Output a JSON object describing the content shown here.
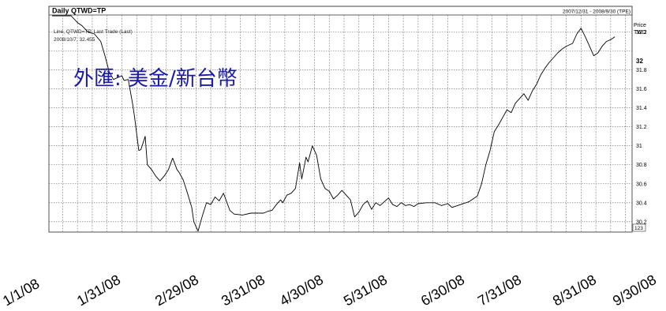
{
  "header": {
    "title": "Daily QTWD=TP",
    "date_range": "2007/12/31 - 2008/9/30 (TPE)",
    "price_label": "Price",
    "currency_label": "TWD"
  },
  "legend": {
    "line1": "Line, QTWD=TP, Last Trade (Last)",
    "line2": "2008/10/7, 32.455"
  },
  "overlay_title": "外匯: 美金/新台幣",
  "last_value_label": "32",
  "bottom_right_label": "123",
  "chart_data": {
    "type": "line",
    "title": "Daily QTWD=TP",
    "subtitle": "2007/12/31 - 2008/9/30 (TPE)",
    "ylabel": "Price TWD",
    "ylim": [
      30.09,
      32.38
    ],
    "yticks": [
      30.2,
      30.4,
      30.6,
      30.8,
      31,
      31.2,
      31.4,
      31.6,
      31.8,
      32,
      32.2
    ],
    "ytick_labels": [
      "30.2",
      "30.4",
      "30.6",
      "30.8",
      "31",
      "31.2",
      "31.4",
      "31.6",
      "31.8",
      "32",
      "32.2"
    ],
    "xlim": [
      "2008-01-01",
      "2008-09-30"
    ],
    "date_axis_labels": [
      {
        "date": "2008-01-01",
        "label": "1/1/08"
      },
      {
        "date": "2008-01-31",
        "label": "1/31/08"
      },
      {
        "date": "2008-02-29",
        "label": "2/29/08"
      },
      {
        "date": "2008-03-31",
        "label": "3/31/08"
      },
      {
        "date": "2008-04-30",
        "label": "4/30/08"
      },
      {
        "date": "2008-05-31",
        "label": "5/31/08"
      },
      {
        "date": "2008-06-30",
        "label": "6/30/08"
      },
      {
        "date": "2008-07-31",
        "label": "7/31/08"
      },
      {
        "date": "2008-08-31",
        "label": "8/31/08"
      },
      {
        "date": "2008-09-30",
        "label": "9/30/08"
      }
    ],
    "grid": true,
    "series": [
      {
        "name": "QTWD=TP",
        "color": "#000000",
        "points": [
          [
            "2008-01-01",
            32.45
          ],
          [
            "2008-01-03",
            32.46
          ],
          [
            "2008-01-05",
            32.42
          ],
          [
            "2008-01-08",
            32.4
          ],
          [
            "2008-01-10",
            32.38
          ],
          [
            "2008-01-13",
            32.3
          ],
          [
            "2008-01-15",
            32.27
          ],
          [
            "2008-01-18",
            32.2
          ],
          [
            "2008-01-21",
            32.18
          ],
          [
            "2008-01-24",
            32.1
          ],
          [
            "2008-01-26",
            31.95
          ],
          [
            "2008-01-28",
            31.78
          ],
          [
            "2008-01-30",
            31.7
          ],
          [
            "2008-02-01",
            31.72
          ],
          [
            "2008-02-03",
            31.74
          ],
          [
            "2008-02-04",
            31.69
          ],
          [
            "2008-02-06",
            31.7
          ],
          [
            "2008-02-08",
            31.45
          ],
          [
            "2008-02-09",
            31.3
          ],
          [
            "2008-02-11",
            30.95
          ],
          [
            "2008-02-12",
            30.96
          ],
          [
            "2008-02-14",
            31.1
          ],
          [
            "2008-02-15",
            30.8
          ],
          [
            "2008-02-17",
            30.75
          ],
          [
            "2008-02-19",
            30.68
          ],
          [
            "2008-02-21",
            30.63
          ],
          [
            "2008-02-23",
            30.68
          ],
          [
            "2008-02-25",
            30.75
          ],
          [
            "2008-02-27",
            30.87
          ],
          [
            "2008-02-29",
            30.75
          ],
          [
            "2008-03-01",
            30.72
          ],
          [
            "2008-03-03",
            30.64
          ],
          [
            "2008-03-05",
            30.5
          ],
          [
            "2008-03-07",
            30.35
          ],
          [
            "2008-03-08",
            30.2
          ],
          [
            "2008-03-10",
            30.1
          ],
          [
            "2008-03-12",
            30.26
          ],
          [
            "2008-03-14",
            30.4
          ],
          [
            "2008-03-16",
            30.38
          ],
          [
            "2008-03-18",
            30.46
          ],
          [
            "2008-03-20",
            30.42
          ],
          [
            "2008-03-22",
            30.5
          ],
          [
            "2008-03-23",
            30.44
          ],
          [
            "2008-03-25",
            30.32
          ],
          [
            "2008-03-27",
            30.28
          ],
          [
            "2008-03-31",
            30.27
          ],
          [
            "2008-04-04",
            30.29
          ],
          [
            "2008-04-10",
            30.29
          ],
          [
            "2008-04-12",
            30.31
          ],
          [
            "2008-04-14",
            30.32
          ],
          [
            "2008-04-16",
            30.38
          ],
          [
            "2008-04-18",
            30.43
          ],
          [
            "2008-04-19",
            30.4
          ],
          [
            "2008-04-21",
            30.48
          ],
          [
            "2008-04-23",
            30.5
          ],
          [
            "2008-04-25",
            30.55
          ],
          [
            "2008-04-27",
            30.82
          ],
          [
            "2008-04-28",
            30.65
          ],
          [
            "2008-04-30",
            30.88
          ],
          [
            "2008-05-01",
            30.83
          ],
          [
            "2008-05-03",
            31.0
          ],
          [
            "2008-05-05",
            30.9
          ],
          [
            "2008-05-07",
            30.65
          ],
          [
            "2008-05-09",
            30.55
          ],
          [
            "2008-05-11",
            30.52
          ],
          [
            "2008-05-13",
            30.44
          ],
          [
            "2008-05-15",
            30.48
          ],
          [
            "2008-05-17",
            30.53
          ],
          [
            "2008-05-19",
            30.48
          ],
          [
            "2008-05-21",
            30.43
          ],
          [
            "2008-05-23",
            30.25
          ],
          [
            "2008-05-25",
            30.3
          ],
          [
            "2008-05-27",
            30.38
          ],
          [
            "2008-05-29",
            30.42
          ],
          [
            "2008-05-31",
            30.33
          ],
          [
            "2008-06-02",
            30.4
          ],
          [
            "2008-06-04",
            30.37
          ],
          [
            "2008-06-06",
            30.41
          ],
          [
            "2008-06-08",
            30.45
          ],
          [
            "2008-06-10",
            30.38
          ],
          [
            "2008-06-12",
            30.36
          ],
          [
            "2008-06-14",
            30.4
          ],
          [
            "2008-06-16",
            30.37
          ],
          [
            "2008-06-18",
            30.38
          ],
          [
            "2008-06-20",
            30.36
          ],
          [
            "2008-06-22",
            30.39
          ],
          [
            "2008-06-26",
            30.4
          ],
          [
            "2008-06-30",
            30.4
          ],
          [
            "2008-07-03",
            30.37
          ],
          [
            "2008-07-06",
            30.39
          ],
          [
            "2008-07-08",
            30.35
          ],
          [
            "2008-07-12",
            30.38
          ],
          [
            "2008-07-16",
            30.41
          ],
          [
            "2008-07-20",
            30.47
          ],
          [
            "2008-07-22",
            30.6
          ],
          [
            "2008-07-24",
            30.8
          ],
          [
            "2008-07-26",
            30.95
          ],
          [
            "2008-07-28",
            31.15
          ],
          [
            "2008-07-30",
            31.22
          ],
          [
            "2008-08-01",
            31.3
          ],
          [
            "2008-08-03",
            31.38
          ],
          [
            "2008-08-05",
            31.35
          ],
          [
            "2008-08-07",
            31.45
          ],
          [
            "2008-08-09",
            31.5
          ],
          [
            "2008-08-11",
            31.55
          ],
          [
            "2008-08-13",
            31.48
          ],
          [
            "2008-08-15",
            31.58
          ],
          [
            "2008-08-17",
            31.65
          ],
          [
            "2008-08-19",
            31.75
          ],
          [
            "2008-08-21",
            31.82
          ],
          [
            "2008-08-23",
            31.88
          ],
          [
            "2008-08-25",
            31.93
          ],
          [
            "2008-08-27",
            31.98
          ],
          [
            "2008-08-29",
            32.02
          ],
          [
            "2008-08-31",
            32.05
          ],
          [
            "2008-09-03",
            32.08
          ],
          [
            "2008-09-05",
            32.18
          ],
          [
            "2008-09-07",
            32.24
          ],
          [
            "2008-09-09",
            32.15
          ],
          [
            "2008-09-11",
            32.05
          ],
          [
            "2008-09-13",
            31.95
          ],
          [
            "2008-09-15",
            31.98
          ],
          [
            "2008-09-17",
            32.05
          ],
          [
            "2008-09-19",
            32.1
          ],
          [
            "2008-09-21",
            32.12
          ],
          [
            "2008-09-23",
            32.15
          ]
        ]
      }
    ]
  }
}
